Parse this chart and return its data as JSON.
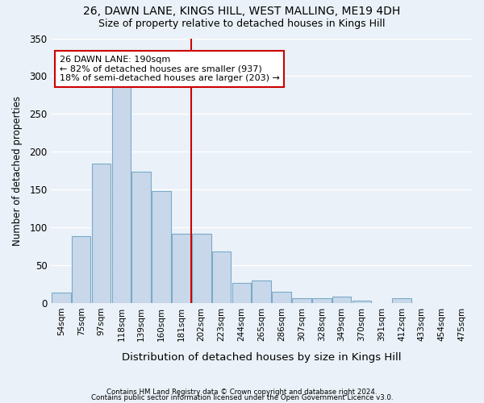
{
  "title1": "26, DAWN LANE, KINGS HILL, WEST MALLING, ME19 4DH",
  "title2": "Size of property relative to detached houses in Kings Hill",
  "xlabel": "Distribution of detached houses by size in Kings Hill",
  "ylabel": "Number of detached properties",
  "categories": [
    "54sqm",
    "75sqm",
    "97sqm",
    "118sqm",
    "139sqm",
    "160sqm",
    "181sqm",
    "202sqm",
    "223sqm",
    "244sqm",
    "265sqm",
    "286sqm",
    "307sqm",
    "328sqm",
    "349sqm",
    "370sqm",
    "391sqm",
    "412sqm",
    "433sqm",
    "454sqm",
    "475sqm"
  ],
  "values": [
    14,
    88,
    184,
    288,
    174,
    148,
    92,
    92,
    68,
    27,
    30,
    15,
    6,
    7,
    9,
    3,
    0,
    6,
    0,
    0,
    0
  ],
  "bar_color": "#c8d8ea",
  "bar_edge_color": "#7aaac8",
  "bg_color": "#eaf1f8",
  "grid_color": "#ffffff",
  "vline_color": "#cc0000",
  "vline_pos": 6.5,
  "annotation_text": "26 DAWN LANE: 190sqm\n← 82% of detached houses are smaller (937)\n18% of semi-detached houses are larger (203) →",
  "annotation_box_facecolor": "#ffffff",
  "annotation_box_edgecolor": "#cc0000",
  "footer1": "Contains HM Land Registry data © Crown copyright and database right 2024.",
  "footer2": "Contains public sector information licensed under the Open Government Licence v3.0.",
  "ylim": [
    0,
    350
  ],
  "yticks": [
    0,
    50,
    100,
    150,
    200,
    250,
    300,
    350
  ]
}
